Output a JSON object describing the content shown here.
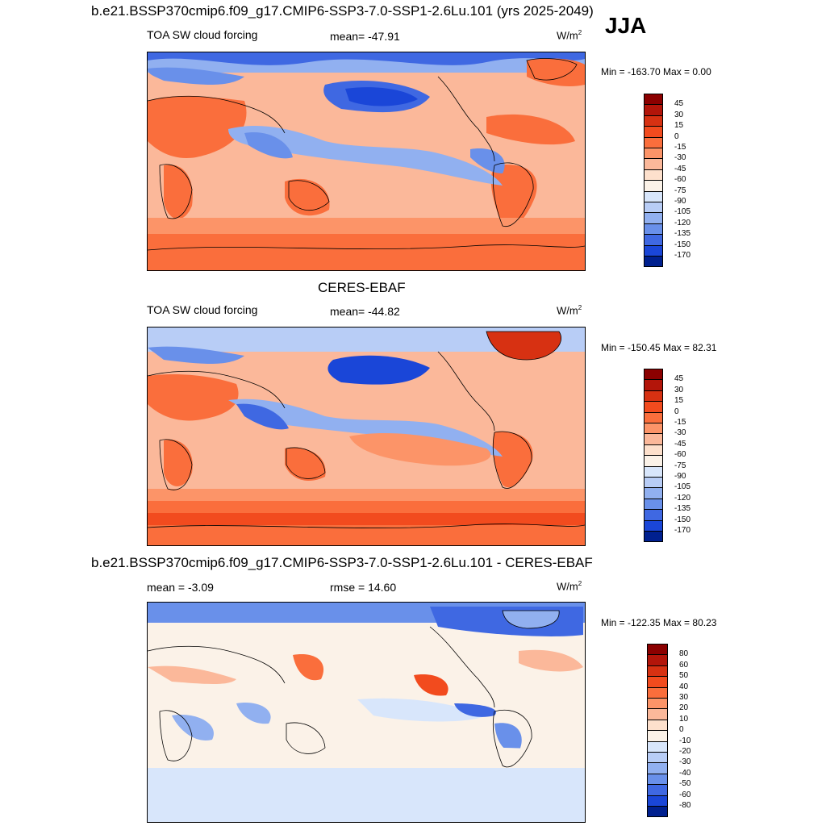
{
  "header": {
    "title": "b.e21.BSSP370cmip6.f09_g17.CMIP6-SSP3-7.0-SSP1-2.6Lu.101 (yrs 2025-2049)",
    "season": "JJA"
  },
  "panels": [
    {
      "title": "",
      "variable": "TOA SW cloud forcing",
      "stat": "mean= -47.91",
      "units": "W/m",
      "units_sup": "2",
      "minmax": "Min = -163.70 Max =   0.00",
      "cbar": {
        "labels": [
          "45",
          "30",
          "15",
          "0",
          "-15",
          "-30",
          "-45",
          "-60",
          "-75",
          "-90",
          "-105",
          "-120",
          "-135",
          "-150",
          "-170"
        ],
        "colors": [
          "#8b0000",
          "#b3150a",
          "#d73112",
          "#f24b1e",
          "#fa6e3c",
          "#fc9468",
          "#fbb89a",
          "#fde0cc",
          "#fbf2e8",
          "#d8e6fb",
          "#b8cdf6",
          "#91b0f0",
          "#6990ea",
          "#3f68e2",
          "#1a46d8",
          "#00208f"
        ]
      },
      "map_text": []
    },
    {
      "title": "CERES-EBAF",
      "variable": "TOA SW cloud forcing",
      "stat": "mean= -44.82",
      "units": "W/m",
      "units_sup": "2",
      "minmax": "Min = -150.45 Max =  82.31",
      "cbar": {
        "labels": [
          "45",
          "30",
          "15",
          "0",
          "-15",
          "-30",
          "-45",
          "-60",
          "-75",
          "-90",
          "-105",
          "-120",
          "-135",
          "-150",
          "-170"
        ],
        "colors": [
          "#8b0000",
          "#b3150a",
          "#d73112",
          "#f24b1e",
          "#fa6e3c",
          "#fc9468",
          "#fbb89a",
          "#fde0cc",
          "#fbf2e8",
          "#d8e6fb",
          "#b8cdf6",
          "#91b0f0",
          "#6990ea",
          "#3f68e2",
          "#1a46d8",
          "#00208f"
        ]
      }
    },
    {
      "title": "b.e21.BSSP370cmip6.f09_g17.CMIP6-SSP3-7.0-SSP1-2.6Lu.101 - CERES-EBAF",
      "variable": "mean =  -3.09",
      "stat": "rmse =  14.60",
      "units": "W/m",
      "units_sup": "2",
      "minmax": "Min = -122.35 Max =  80.23",
      "cbar": {
        "labels": [
          "80",
          "60",
          "50",
          "40",
          "30",
          "20",
          "10",
          "0",
          "-10",
          "-20",
          "-30",
          "-40",
          "-50",
          "-60",
          "-80"
        ],
        "colors": [
          "#8b0000",
          "#b3150a",
          "#d73112",
          "#f24b1e",
          "#fa6e3c",
          "#fc9468",
          "#fbb89a",
          "#fde0cc",
          "#fbf2e8",
          "#d8e6fb",
          "#b8cdf6",
          "#91b0f0",
          "#6990ea",
          "#3f68e2",
          "#1a46d8",
          "#00208f"
        ]
      }
    }
  ]
}
